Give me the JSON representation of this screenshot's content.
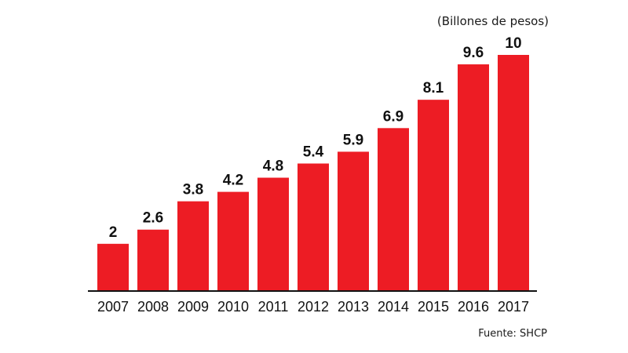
{
  "chart_data": {
    "type": "bar",
    "categories": [
      "2007",
      "2008",
      "2009",
      "2010",
      "2011",
      "2012",
      "2013",
      "2014",
      "2015",
      "2016",
      "2017"
    ],
    "values": [
      2,
      2.6,
      3.8,
      4.2,
      4.8,
      5.4,
      5.9,
      6.9,
      8.1,
      9.6,
      10
    ],
    "value_labels": [
      "2",
      "2.6",
      "3.8",
      "4.2",
      "4.8",
      "5.4",
      "5.9",
      "6.9",
      "8.1",
      "9.6",
      "10"
    ],
    "unit_label": "(Billones de pesos)",
    "source": "Fuente: SHCP",
    "ylim": [
      0,
      10
    ],
    "grid": false,
    "bar_color": "#ED1C24",
    "axis_color": "#111111"
  }
}
